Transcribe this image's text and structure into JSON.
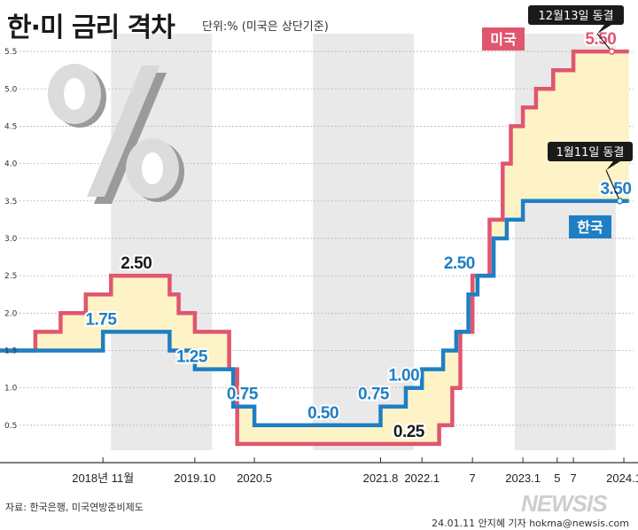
{
  "title": "한·미 금리 격차",
  "subtitle": "단위:% (미국은 상단기준)",
  "source": "자료: 한국은행, 미국연방준비제도",
  "credit": "24.01.11 안지혜 기자 hokma@newsis.com",
  "watermark": "NEWSIS",
  "colors": {
    "us": "#e0566f",
    "korea": "#1f7fc4",
    "gap_fill": "#fdf3c6",
    "band": "#e9e9e9",
    "tag_us_bg": "#e0566f",
    "tag_kr_bg": "#1f7fc4",
    "callout_bg": "#1a1a1a"
  },
  "icons": [
    "percent-icon"
  ],
  "chart_data": {
    "type": "line",
    "step": true,
    "ylim": [
      0,
      5.75
    ],
    "yticks": [
      0.5,
      1.0,
      1.5,
      2.0,
      2.5,
      3.0,
      3.5,
      4.0,
      4.5,
      5.0,
      5.5
    ],
    "ytick_labels": [
      "0.5",
      "1.0",
      "1.5",
      "2.0",
      "2.5",
      "3.0",
      "3.5",
      "4.0",
      "4.5",
      "5.0",
      "5.5"
    ],
    "x_tick_labels": [
      {
        "label": "2018년 11월",
        "x": 2018.92
      },
      {
        "label": "2019.10",
        "x": 2019.83
      },
      {
        "label": "2020.5",
        "x": 2020.42
      },
      {
        "label": "2021.8",
        "x": 2021.67
      },
      {
        "label": "2022.1",
        "x": 2022.08
      },
      {
        "label": "7",
        "x": 2022.58
      },
      {
        "label": "2023.1",
        "x": 2023.08
      },
      {
        "label": "5",
        "x": 2023.42
      },
      {
        "label": "7",
        "x": 2023.58
      },
      {
        "label": "2024.1",
        "x": 2024.08
      }
    ],
    "series": [
      {
        "name": "미국",
        "color": "#e0566f",
        "points": [
          [
            2017.9,
            1.5
          ],
          [
            2018.25,
            1.75
          ],
          [
            2018.5,
            2.0
          ],
          [
            2018.75,
            2.25
          ],
          [
            2019.0,
            2.5
          ],
          [
            2019.58,
            2.25
          ],
          [
            2019.67,
            2.0
          ],
          [
            2019.83,
            1.75
          ],
          [
            2020.17,
            1.25
          ],
          [
            2020.25,
            0.25
          ],
          [
            2022.25,
            0.5
          ],
          [
            2022.38,
            1.0
          ],
          [
            2022.46,
            1.75
          ],
          [
            2022.58,
            2.5
          ],
          [
            2022.75,
            3.25
          ],
          [
            2022.88,
            4.0
          ],
          [
            2022.96,
            4.5
          ],
          [
            2023.08,
            4.75
          ],
          [
            2023.21,
            5.0
          ],
          [
            2023.38,
            5.25
          ],
          [
            2023.58,
            5.5
          ],
          [
            2024.13,
            5.5
          ]
        ]
      },
      {
        "name": "한국",
        "color": "#1f7fc4",
        "points": [
          [
            2017.9,
            1.5
          ],
          [
            2018.92,
            1.75
          ],
          [
            2019.58,
            1.5
          ],
          [
            2019.83,
            1.25
          ],
          [
            2020.21,
            0.75
          ],
          [
            2020.42,
            0.5
          ],
          [
            2021.67,
            0.75
          ],
          [
            2021.92,
            1.0
          ],
          [
            2022.08,
            1.25
          ],
          [
            2022.29,
            1.5
          ],
          [
            2022.42,
            1.75
          ],
          [
            2022.54,
            2.25
          ],
          [
            2022.63,
            2.5
          ],
          [
            2022.79,
            3.0
          ],
          [
            2022.92,
            3.25
          ],
          [
            2023.08,
            3.5
          ],
          [
            2024.13,
            3.5
          ]
        ]
      }
    ],
    "data_labels": [
      {
        "text": "2.50",
        "x": 2019.25,
        "y": 2.5,
        "series": "미국"
      },
      {
        "text": "1.75",
        "x": 2018.9,
        "y": 1.75,
        "series": "한국"
      },
      {
        "text": "1.25",
        "x": 2019.8,
        "y": 1.25,
        "series": "한국"
      },
      {
        "text": "0.75",
        "x": 2020.3,
        "y": 0.75,
        "series": "한국"
      },
      {
        "text": "0.50",
        "x": 2021.1,
        "y": 0.5,
        "series": "한국"
      },
      {
        "text": "0.75",
        "x": 2021.6,
        "y": 0.75,
        "series": "한국"
      },
      {
        "text": "1.00",
        "x": 2021.9,
        "y": 1.0,
        "series": "한국"
      },
      {
        "text": "0.25",
        "x": 2021.95,
        "y": 0.25,
        "series": "미국"
      },
      {
        "text": "2.50",
        "x": 2022.45,
        "y": 2.5,
        "series": "한국"
      },
      {
        "text": "5.50",
        "x": 2023.85,
        "y": 5.5,
        "series": "미국"
      },
      {
        "text": "3.50",
        "x": 2024.0,
        "y": 3.5,
        "series": "한국"
      }
    ],
    "series_tags": [
      {
        "text": "미국",
        "series": "미국"
      },
      {
        "text": "한국",
        "series": "한국"
      }
    ],
    "callouts": [
      {
        "text": "12월13일 동결",
        "series": "미국",
        "x": 2023.96,
        "y": 5.5
      },
      {
        "text": "1월11일 동결",
        "series": "한국",
        "x": 2024.04,
        "y": 3.5
      }
    ],
    "grid": true
  }
}
